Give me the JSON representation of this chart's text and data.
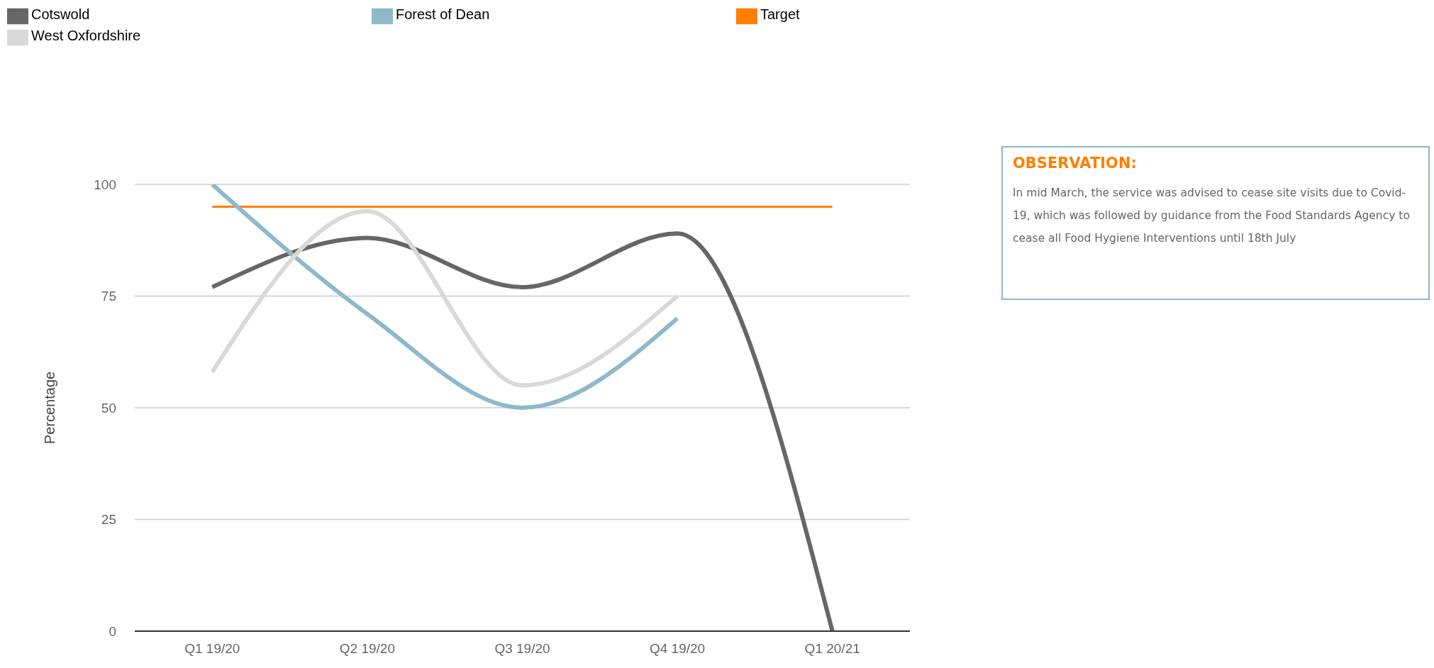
{
  "chart_data": {
    "type": "line",
    "ylabel": "Percentage",
    "categories": [
      "Q1 19/20",
      "Q2 19/20",
      "Q3 19/20",
      "Q4 19/20",
      "Q1 20/21"
    ],
    "series": [
      {
        "name": "Target",
        "color": "#ff7f00",
        "values": [
          95,
          95,
          95,
          95,
          95
        ]
      },
      {
        "name": "Cotswold",
        "color": "#666666",
        "values": [
          77,
          88,
          77,
          89,
          0
        ]
      },
      {
        "name": "Forest of Dean",
        "color": "#8db9cb",
        "values": [
          100,
          71,
          50,
          70,
          null
        ]
      },
      {
        "name": "West Oxfordshire",
        "color": "#d9d9d9",
        "values": [
          58,
          94,
          55,
          75,
          null
        ]
      }
    ],
    "ylim": [
      0,
      100
    ],
    "yticks": [
      0,
      25,
      50,
      75,
      100
    ],
    "grid": "y",
    "legend": "top",
    "marker": "none",
    "annotations": [
      "OBSERVATION:",
      "In mid March, the service was advised to cease site visits due to Covid-19, which was followed by guidance from the Food Standards Agency to cease all Food Hygiene Interventions until 18th July"
    ]
  }
}
